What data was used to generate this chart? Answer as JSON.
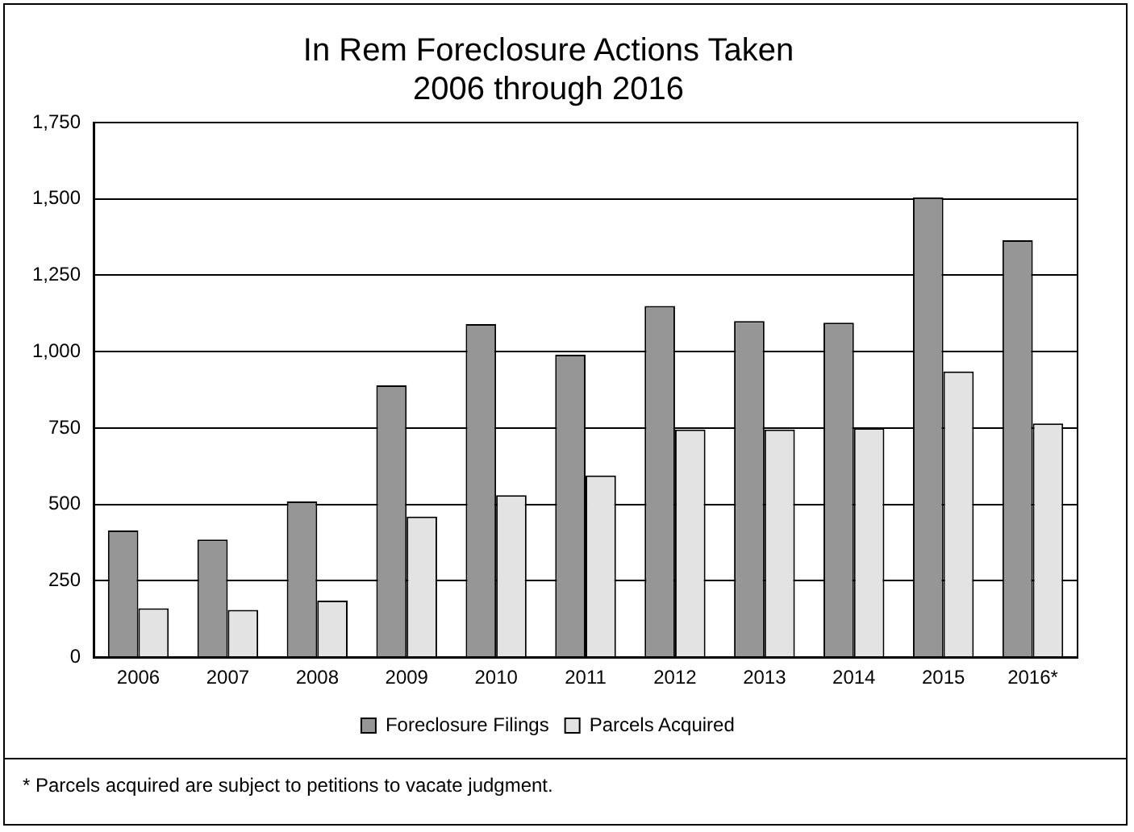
{
  "chart_data": {
    "type": "bar",
    "title": "In Rem Foreclosure Actions Taken\n2006 through 2016",
    "categories": [
      "2006",
      "2007",
      "2008",
      "2009",
      "2010",
      "2011",
      "2012",
      "2013",
      "2014",
      "2015",
      "2016*"
    ],
    "series": [
      {
        "name": "Foreclosure Filings",
        "color": "#969696",
        "values": [
          415,
          385,
          510,
          890,
          1090,
          990,
          1150,
          1100,
          1095,
          1505,
          1365
        ]
      },
      {
        "name": "Parcels Acquired",
        "color": "#e3e3e3",
        "values": [
          160,
          155,
          185,
          460,
          530,
          595,
          745,
          745,
          750,
          935,
          765
        ]
      }
    ],
    "ylim": [
      0,
      1750
    ],
    "yticks": [
      0,
      250,
      500,
      750,
      {
        "value": 1000,
        "label": "1,000"
      },
      {
        "value": 1250,
        "label": "1,250"
      },
      {
        "value": 1500,
        "label": "1,500"
      },
      {
        "value": 1750,
        "label": "1,750"
      }
    ],
    "grid": "y",
    "legend": "bottom",
    "annotations": [
      "* Parcels acquired are subject to petitions to vacate judgment."
    ]
  }
}
